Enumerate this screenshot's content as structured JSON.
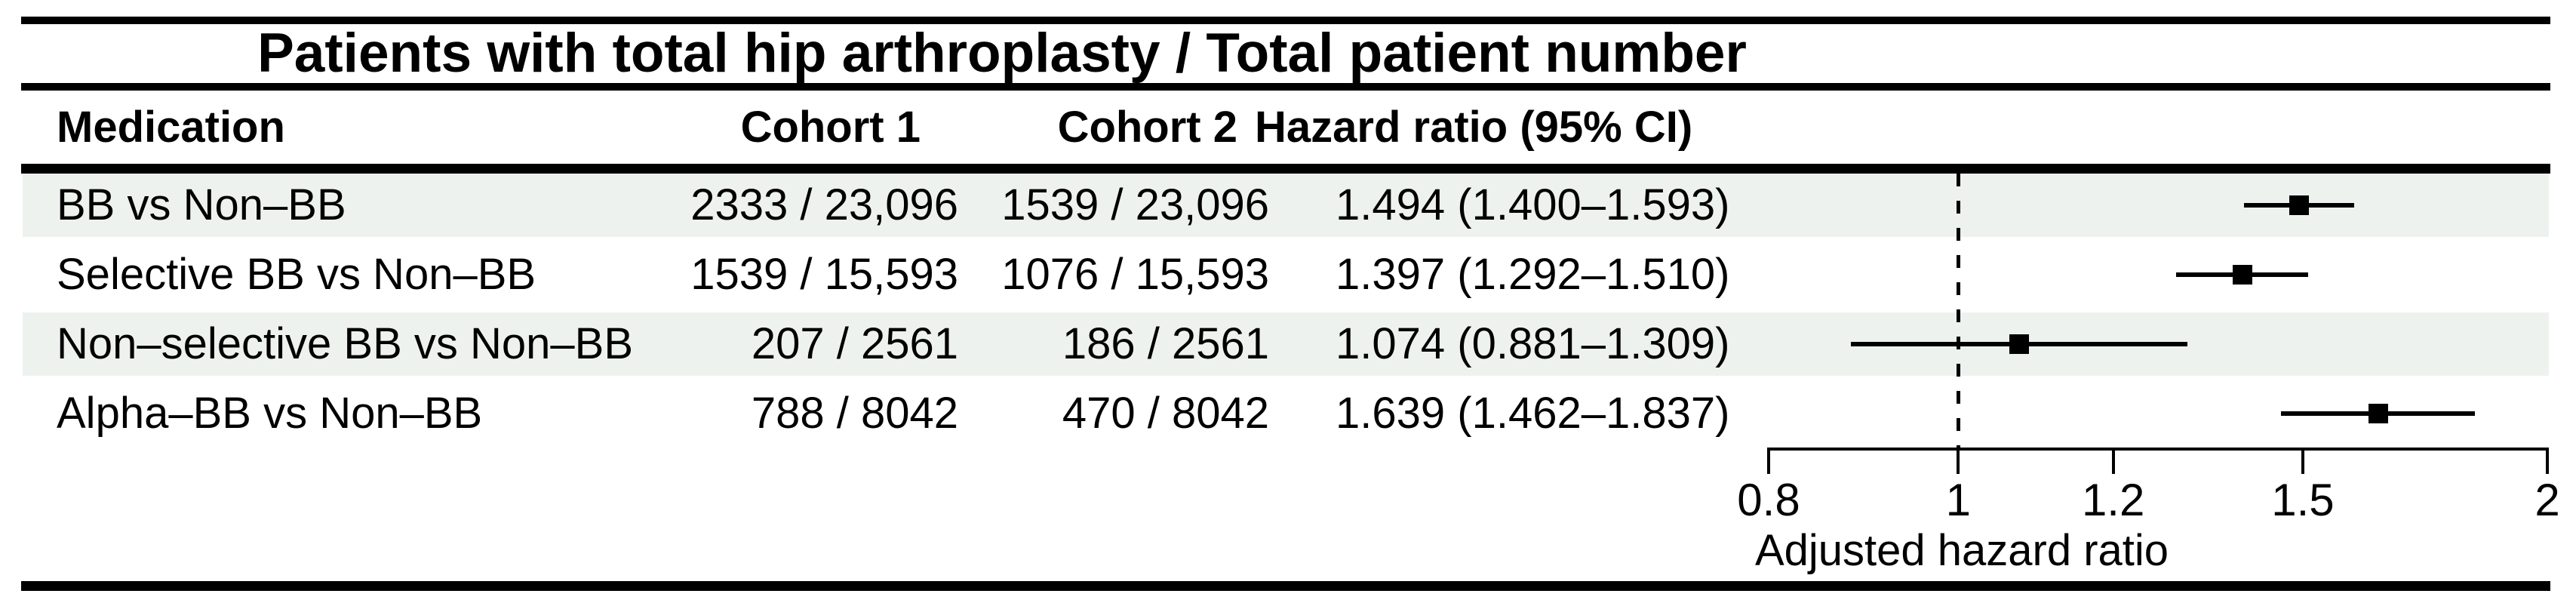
{
  "figure": {
    "title": "Patients with total hip arthroplasty / Total patient number",
    "columns": {
      "medication": "Medication",
      "cohort1": "Cohort 1",
      "cohort2": "Cohort 2",
      "hazard_ratio": "Hazard ratio (95% CI)"
    },
    "rows": [
      {
        "medication": "BB vs Non–BB",
        "cohort1": "2333 / 23,096",
        "cohort2": "1539 / 23,096",
        "hr_text": "1.494 (1.400–1.593)",
        "hr": 1.494,
        "ci_low": 1.4,
        "ci_high": 1.593,
        "shaded": true
      },
      {
        "medication": "Selective BB vs Non–BB",
        "cohort1": "1539 / 15,593",
        "cohort2": "1076 / 15,593",
        "hr_text": "1.397 (1.292–1.510)",
        "hr": 1.397,
        "ci_low": 1.292,
        "ci_high": 1.51,
        "shaded": false
      },
      {
        "medication": "Non–selective BB vs Non–BB",
        "cohort1": "207 / 2561",
        "cohort2": "186 / 2561",
        "hr_text": "1.074 (0.881–1.309)",
        "hr": 1.074,
        "ci_low": 0.881,
        "ci_high": 1.309,
        "shaded": true
      },
      {
        "medication": "Alpha–BB vs Non–BB",
        "cohort1": "788 / 8042",
        "cohort2": "470 / 8042",
        "hr_text": "1.639 (1.462–1.837)",
        "hr": 1.639,
        "ci_low": 1.462,
        "ci_high": 1.837,
        "shaded": false
      }
    ],
    "axis": {
      "label": "Adjusted hazard ratio",
      "min": 0.8,
      "max": 2,
      "scale": "log",
      "ticks": [
        "0.8",
        "1",
        "1.2",
        "1.5",
        "2"
      ],
      "tick_values": [
        0.8,
        1,
        1.2,
        1.5,
        2
      ],
      "reference_line": 1
    },
    "colors": {
      "ink": "#000000",
      "row_band": "#edf2ef",
      "background": "#ffffff"
    }
  },
  "chart_data": {
    "type": "scatter",
    "variant": "forest-plot",
    "title": "Patients with total hip arthroplasty / Total patient number",
    "categories": [
      "BB vs Non–BB",
      "Selective BB vs Non–BB",
      "Non–selective BB vs Non–BB",
      "Alpha–BB vs Non–BB"
    ],
    "series": [
      {
        "name": "Adjusted hazard ratio",
        "values": [
          1.494,
          1.397,
          1.074,
          1.639
        ]
      },
      {
        "name": "95% CI lower",
        "values": [
          1.4,
          1.292,
          0.881,
          1.462
        ]
      },
      {
        "name": "95% CI upper",
        "values": [
          1.593,
          1.51,
          1.309,
          1.837
        ]
      }
    ],
    "table": {
      "columns": [
        "Medication",
        "Cohort 1",
        "Cohort 2",
        "Hazard ratio (95% CI)"
      ],
      "rows": [
        [
          "BB vs Non–BB",
          "2333 / 23,096",
          "1539 / 23,096",
          "1.494 (1.400–1.593)"
        ],
        [
          "Selective BB vs Non–BB",
          "1539 / 15,593",
          "1076 / 15,593",
          "1.397 (1.292–1.510)"
        ],
        [
          "Non–selective BB vs Non–BB",
          "207 / 2561",
          "186 / 2561",
          "1.074 (0.881–1.309)"
        ],
        [
          "Alpha–BB vs Non–BB",
          "788 / 8042",
          "470 / 8042",
          "1.639 (1.462–1.837)"
        ]
      ]
    },
    "xlabel": "Adjusted hazard ratio",
    "x_scale": "log",
    "xlim": [
      0.8,
      2
    ],
    "x_ticks": [
      0.8,
      1,
      1.2,
      1.5,
      2
    ],
    "reference_line": 1,
    "marker": "square",
    "grid": false,
    "legend": false
  }
}
